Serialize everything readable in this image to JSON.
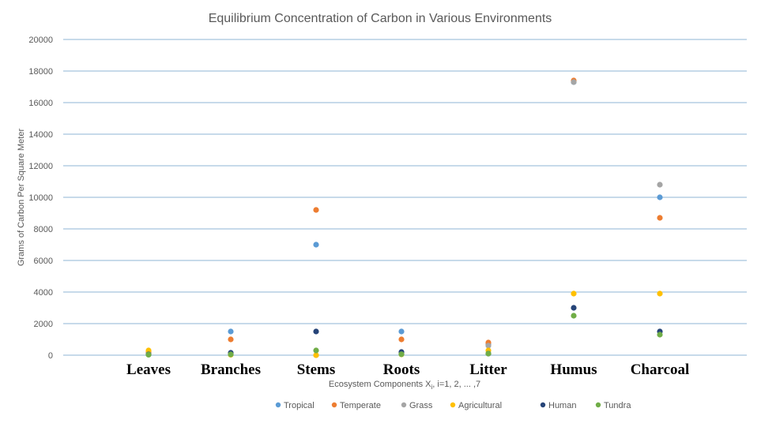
{
  "chart_data": {
    "type": "scatter",
    "title": "Equilibrium Concentration of Carbon in Various Environments",
    "xlabel": "Ecosystem Components  X",
    "xlabel_sub": "i",
    "xlabel_tail": ", i=1, 2, ... ,7",
    "ylabel": "Grams of Carbon Per Square Meter",
    "ylim": [
      0,
      20000
    ],
    "yticks": [
      0,
      2000,
      4000,
      6000,
      8000,
      10000,
      12000,
      14000,
      16000,
      18000,
      20000
    ],
    "grid": true,
    "legend_position": "bottom",
    "categories": [
      "Leaves",
      "Branches",
      "Stems",
      "Roots",
      "Litter",
      "Humus",
      "Charcoal"
    ],
    "series": [
      {
        "name": "Tropical",
        "color": "#5b9bd5",
        "values": [
          130,
          1500,
          7000,
          1500,
          700,
          17300,
          10000
        ]
      },
      {
        "name": "Temperate",
        "color": "#ed7d31",
        "values": [
          200,
          1000,
          9200,
          1000,
          800,
          17400,
          8700
        ]
      },
      {
        "name": "Grass",
        "color": "#a5a5a5",
        "values": [
          100,
          50,
          0,
          80,
          600,
          17300,
          10800
        ]
      },
      {
        "name": "Agricultural",
        "color": "#ffc000",
        "values": [
          300,
          30,
          0,
          50,
          300,
          3900,
          3900
        ]
      },
      {
        "name": "Human",
        "color": "#264478",
        "values": [
          50,
          150,
          1500,
          200,
          100,
          3000,
          1500
        ]
      },
      {
        "name": "Tundra",
        "color": "#70ad47",
        "values": [
          30,
          50,
          300,
          60,
          100,
          2500,
          1300
        ]
      }
    ]
  }
}
